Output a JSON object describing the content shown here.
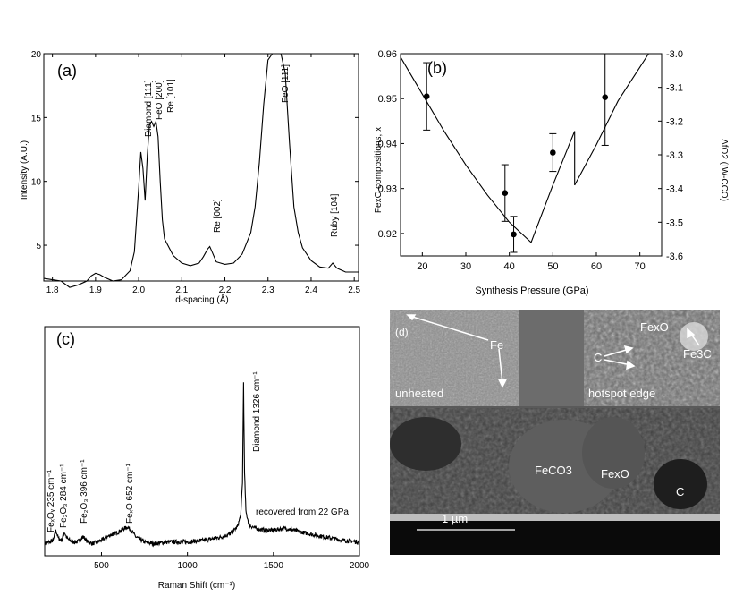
{
  "chart_data": [
    {
      "panel": "a",
      "type": "line",
      "panel_label": "(a)",
      "xlabel": "d-spacing (Å)",
      "ylabel": "Intensity (A.U.)",
      "xlim": [
        1.78,
        2.51
      ],
      "ylim": [
        2.2,
        20
      ],
      "xticks": [
        "1.8",
        "1.9",
        "2.0",
        "2.1",
        "2.2",
        "2.3",
        "2.4",
        "2.5"
      ],
      "yticks": [
        "5",
        "10",
        "15",
        "20"
      ],
      "peak_labels": [
        "Diamond [111]",
        "FeO [200]",
        "Re [101]",
        "Re [002]",
        "FeO [111]",
        "Ruby [104]"
      ],
      "series": [
        {
          "x": [
            1.78,
            1.8,
            1.82,
            1.84,
            1.86,
            1.88,
            1.89,
            1.9,
            1.91,
            1.92,
            1.94,
            1.96,
            1.98,
            1.99,
            2.0,
            2.005,
            2.01,
            2.015,
            2.02,
            2.025,
            2.03,
            2.035,
            2.04,
            2.045,
            2.05,
            2.055,
            2.06,
            2.08,
            2.1,
            2.12,
            2.14,
            2.15,
            2.16,
            2.165,
            2.17,
            2.18,
            2.2,
            2.22,
            2.24,
            2.26,
            2.27,
            2.28,
            2.29,
            2.3,
            2.31,
            2.32,
            2.33,
            2.34,
            2.35,
            2.36,
            2.37,
            2.38,
            2.4,
            2.42,
            2.44,
            2.45,
            2.46,
            2.48,
            2.51
          ],
          "y": [
            2.4,
            2.3,
            2.2,
            1.7,
            1.9,
            2.2,
            2.6,
            2.8,
            2.7,
            2.5,
            2.2,
            2.3,
            3.0,
            4.5,
            9.5,
            12.3,
            11.0,
            8.5,
            12.0,
            14.4,
            14.7,
            14.3,
            14.7,
            13.5,
            10.0,
            7.0,
            5.5,
            4.2,
            3.6,
            3.4,
            3.6,
            4.1,
            4.7,
            4.9,
            4.5,
            3.7,
            3.5,
            3.6,
            4.3,
            6.0,
            8.0,
            11.5,
            16.0,
            19.5,
            20.0,
            20.0,
            20.0,
            18.5,
            13.0,
            8.0,
            6.0,
            4.8,
            3.8,
            3.3,
            3.2,
            3.6,
            3.2,
            2.9,
            2.9
          ]
        }
      ]
    },
    {
      "panel": "b",
      "type": "scatter",
      "panel_label": "(b)",
      "xlabel": "Synthesis Pressure (GPa)",
      "ylabel": "FexO compositions, x",
      "ylabel2": "ΔfO2 (IW-CCO)",
      "xlim": [
        15,
        75
      ],
      "ylim": [
        0.915,
        0.96
      ],
      "ylim2": [
        -3.6,
        -3.0
      ],
      "xticks": [
        "20",
        "30",
        "40",
        "50",
        "60",
        "70"
      ],
      "yticks": [
        "0.92",
        "0.93",
        "0.94",
        "0.95",
        "0.96"
      ],
      "yticks2": [
        "-3.0",
        "-3.1",
        "-3.2",
        "-3.3",
        "-3.4",
        "-3.5",
        "-3.6"
      ],
      "points": [
        {
          "x": 21,
          "y": 0.9505,
          "err": 0.0075
        },
        {
          "x": 39,
          "y": 0.929,
          "err": 0.0063
        },
        {
          "x": 41,
          "y": 0.9198,
          "err": 0.004
        },
        {
          "x": 50,
          "y": 0.938,
          "err": 0.0042
        },
        {
          "x": 62,
          "y": 0.9503,
          "err": 0.0107
        }
      ],
      "line_segments": [
        {
          "x": [
            15,
            20,
            25,
            30,
            35,
            40,
            45
          ],
          "y2": [
            -3.01,
            -3.12,
            -3.23,
            -3.33,
            -3.42,
            -3.5,
            -3.56
          ]
        },
        {
          "x": [
            45,
            50,
            55
          ],
          "y2": [
            -3.56,
            -3.39,
            -3.23
          ]
        },
        {
          "x": [
            55,
            55,
            60,
            65,
            70,
            72
          ],
          "y2": [
            -3.23,
            -3.39,
            -3.27,
            -3.14,
            -3.04,
            -3.0
          ]
        }
      ]
    },
    {
      "panel": "c",
      "type": "line",
      "panel_label": "(c)",
      "xlabel": "Raman Shift (cm⁻¹)",
      "xlim": [
        170,
        2000
      ],
      "ylim": [
        0,
        1
      ],
      "xticks": [
        "500",
        "1000",
        "1500",
        "2000"
      ],
      "peak_labels": [
        "FeₓOᵧ 235 cm⁻¹",
        "Fe₂O₃ 284 cm⁻¹",
        "Fe₂O₃ 396 cm⁻¹",
        "FeₓO 652 cm⁻¹",
        "Diamond 1326 cm⁻¹",
        "recovered from 22 GPa"
      ],
      "series": [
        {
          "x": [
            170,
            200,
            220,
            235,
            250,
            270,
            284,
            300,
            330,
            360,
            396,
            420,
            450,
            500,
            550,
            600,
            630,
            652,
            680,
            700,
            750,
            800,
            900,
            1000,
            1100,
            1200,
            1250,
            1290,
            1310,
            1320,
            1326,
            1332,
            1340,
            1360,
            1400,
            1450,
            1500,
            1550,
            1580,
            1620,
            1700,
            1800,
            1900,
            2000
          ],
          "y": [
            0.03,
            0.04,
            0.05,
            0.11,
            0.06,
            0.05,
            0.1,
            0.06,
            0.04,
            0.04,
            0.07,
            0.04,
            0.03,
            0.05,
            0.08,
            0.1,
            0.12,
            0.13,
            0.1,
            0.07,
            0.04,
            0.03,
            0.04,
            0.04,
            0.05,
            0.07,
            0.09,
            0.13,
            0.2,
            0.4,
            1.0,
            0.45,
            0.22,
            0.14,
            0.12,
            0.11,
            0.11,
            0.12,
            0.12,
            0.11,
            0.09,
            0.07,
            0.05,
            0.04
          ]
        }
      ]
    }
  ],
  "sem": {
    "panel_label": "(d)",
    "inset_left_label": "unheated",
    "inset_left_phase": "Fe",
    "inset_right_label": "hotspot edge",
    "inset_right_phase_fexo": "FexO",
    "inset_right_phase_c": "C",
    "inset_right_phase_fe3c": "Fe3C",
    "main_phase_feco3": "FeCO3",
    "main_phase_fexo": "FexO",
    "main_phase_c": "C",
    "scale_bar": "1 µm"
  }
}
